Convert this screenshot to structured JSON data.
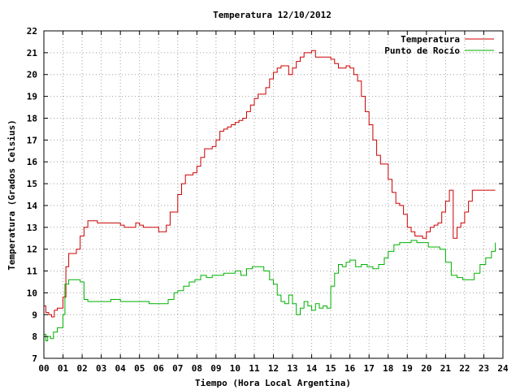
{
  "chart_data": {
    "type": "line",
    "title": "Temperatura 12/10/2012",
    "xlabel": "Tiempo (Hora Local Argentina)",
    "ylabel": "Temperatura (Grados Celsius)",
    "xlim": [
      0,
      24
    ],
    "ylim": [
      7,
      22
    ],
    "xticks": [
      "00",
      "01",
      "02",
      "03",
      "04",
      "05",
      "06",
      "07",
      "08",
      "09",
      "10",
      "11",
      "12",
      "13",
      "14",
      "15",
      "16",
      "17",
      "18",
      "19",
      "20",
      "21",
      "22",
      "23",
      "24"
    ],
    "yticks": [
      "7",
      "8",
      "9",
      "10",
      "11",
      "12",
      "13",
      "14",
      "15",
      "16",
      "17",
      "18",
      "19",
      "20",
      "21",
      "22"
    ],
    "grid": true,
    "legend_position": "top-right",
    "series": [
      {
        "name": "Temperatura",
        "color": "#cc0000",
        "x": [
          0,
          0.1,
          0.25,
          0.4,
          0.55,
          0.7,
          0.9,
          1.0,
          1.15,
          1.3,
          1.5,
          1.7,
          1.9,
          2.1,
          2.3,
          2.5,
          2.8,
          3.0,
          3.2,
          3.5,
          3.8,
          4.0,
          4.2,
          4.4,
          4.6,
          4.8,
          5.0,
          5.2,
          5.4,
          5.6,
          5.8,
          6.0,
          6.2,
          6.4,
          6.6,
          6.8,
          7.0,
          7.2,
          7.4,
          7.6,
          7.8,
          8.0,
          8.2,
          8.4,
          8.6,
          8.8,
          9.0,
          9.2,
          9.4,
          9.6,
          9.8,
          10.0,
          10.2,
          10.4,
          10.6,
          10.8,
          11.0,
          11.2,
          11.4,
          11.6,
          11.8,
          12.0,
          12.2,
          12.4,
          12.6,
          12.8,
          13.0,
          13.2,
          13.4,
          13.6,
          13.8,
          14.0,
          14.2,
          14.4,
          14.6,
          14.8,
          15.0,
          15.2,
          15.4,
          15.6,
          15.8,
          16.0,
          16.2,
          16.4,
          16.6,
          16.8,
          17.0,
          17.2,
          17.4,
          17.6,
          17.8,
          18.0,
          18.2,
          18.4,
          18.6,
          18.8,
          19.0,
          19.2,
          19.4,
          19.6,
          19.8,
          20.0,
          20.2,
          20.4,
          20.6,
          20.8,
          21.0,
          21.2,
          21.4,
          21.6,
          21.8,
          22.0,
          22.2,
          22.4,
          22.6,
          22.8,
          23.0,
          23.2,
          23.4,
          23.6
        ],
        "values": [
          9.4,
          9.1,
          9.0,
          8.9,
          9.2,
          9.3,
          9.3,
          9.8,
          11.2,
          11.8,
          11.8,
          12.0,
          12.6,
          13.0,
          13.3,
          13.3,
          13.2,
          13.2,
          13.2,
          13.2,
          13.2,
          13.1,
          13.0,
          13.0,
          13.0,
          13.2,
          13.1,
          13.0,
          13.0,
          13.0,
          13.0,
          12.8,
          12.8,
          13.1,
          13.7,
          13.7,
          14.5,
          15.0,
          15.4,
          15.4,
          15.5,
          15.8,
          16.2,
          16.6,
          16.6,
          16.7,
          17.0,
          17.4,
          17.5,
          17.6,
          17.7,
          17.8,
          17.9,
          18.0,
          18.3,
          18.6,
          18.9,
          19.1,
          19.1,
          19.4,
          19.8,
          20.1,
          20.3,
          20.4,
          20.4,
          20.0,
          20.3,
          20.6,
          20.8,
          21.0,
          21.0,
          21.1,
          20.8,
          20.8,
          20.8,
          20.8,
          20.7,
          20.5,
          20.3,
          20.3,
          20.4,
          20.3,
          20.0,
          19.7,
          19.0,
          18.3,
          17.7,
          17.0,
          16.3,
          15.9,
          15.9,
          15.2,
          14.6,
          14.1,
          14.0,
          13.6,
          13.0,
          12.8,
          12.6,
          12.6,
          12.5,
          12.8,
          13.0,
          13.1,
          13.2,
          13.7,
          14.2,
          14.7,
          12.5,
          13.0,
          13.2,
          13.7,
          14.2,
          14.7,
          14.7,
          14.7,
          14.7,
          14.7,
          14.7,
          14.7
        ]
      },
      {
        "name": "Punto de Rocío",
        "color": "#00b000",
        "x": [
          0,
          0.1,
          0.2,
          0.35,
          0.5,
          0.7,
          0.9,
          1.0,
          1.1,
          1.3,
          1.5,
          1.7,
          1.9,
          2.1,
          2.3,
          2.5,
          2.8,
          3.0,
          3.5,
          4.0,
          4.5,
          5.0,
          5.5,
          6.0,
          6.3,
          6.5,
          6.8,
          7.0,
          7.3,
          7.6,
          7.9,
          8.2,
          8.5,
          8.8,
          9.1,
          9.4,
          9.7,
          10.0,
          10.3,
          10.6,
          10.9,
          11.2,
          11.5,
          11.8,
          12.0,
          12.2,
          12.4,
          12.6,
          12.8,
          13.0,
          13.2,
          13.4,
          13.6,
          13.8,
          14.0,
          14.2,
          14.4,
          14.6,
          14.8,
          15.0,
          15.2,
          15.4,
          15.6,
          15.8,
          16.0,
          16.3,
          16.6,
          16.9,
          17.2,
          17.5,
          17.8,
          18.0,
          18.3,
          18.6,
          18.9,
          19.2,
          19.5,
          19.8,
          20.1,
          20.4,
          20.7,
          21.0,
          21.3,
          21.6,
          21.9,
          22.2,
          22.5,
          22.8,
          23.1,
          23.4,
          23.6
        ],
        "values": [
          8.1,
          7.8,
          8.0,
          7.9,
          8.2,
          8.4,
          8.4,
          9.0,
          10.4,
          10.6,
          10.6,
          10.6,
          10.5,
          9.7,
          9.6,
          9.6,
          9.6,
          9.6,
          9.7,
          9.6,
          9.6,
          9.6,
          9.5,
          9.5,
          9.5,
          9.7,
          10.0,
          10.1,
          10.3,
          10.5,
          10.6,
          10.8,
          10.7,
          10.8,
          10.8,
          10.9,
          10.9,
          11.0,
          10.8,
          11.1,
          11.2,
          11.2,
          11.0,
          10.6,
          10.4,
          9.9,
          9.6,
          9.5,
          9.9,
          9.5,
          9.0,
          9.3,
          9.6,
          9.4,
          9.2,
          9.5,
          9.3,
          9.4,
          9.3,
          10.3,
          10.9,
          11.3,
          11.2,
          11.4,
          11.5,
          11.2,
          11.3,
          11.2,
          11.1,
          11.3,
          11.6,
          11.9,
          12.2,
          12.3,
          12.3,
          12.4,
          12.3,
          12.3,
          12.1,
          12.1,
          12.0,
          11.4,
          10.8,
          10.7,
          10.6,
          10.6,
          10.9,
          11.3,
          11.6,
          11.9,
          12.3
        ]
      }
    ]
  }
}
